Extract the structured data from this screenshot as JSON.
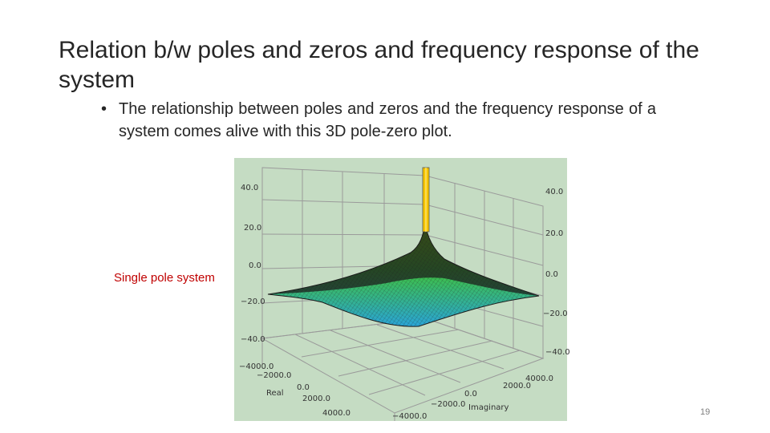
{
  "slide": {
    "title": "Relation b/w poles and zeros and frequency response of the system",
    "bullet_marker": "•",
    "bullet_text": "The relationship between poles and zeros and the frequency response of a system comes alive with this 3D pole-zero plot.",
    "caption": "Single pole system",
    "slide_number": "19"
  },
  "plot": {
    "left_z_labels": [
      "40.0",
      "20.0",
      "0.0",
      "−20.0",
      "−40.0"
    ],
    "right_z_labels": [
      "40.0",
      "20.0",
      "0.0",
      "−20.0",
      "−40.0"
    ],
    "real_labels": [
      "−4000.0",
      "−2000.0",
      "0.0",
      "2000.0",
      "4000.0"
    ],
    "imag_labels": [
      "−4000.0",
      "−2000.0",
      "0.0",
      "2000.0",
      "4000.0"
    ],
    "real_axis_label": "Real",
    "imag_axis_label": "Imaginary",
    "colors": {
      "background": "#c5dcc3",
      "grid": "#9a9a9a",
      "pole": "#f5c400",
      "surface_high": "#7cd000",
      "surface_low": "#2aa9d6",
      "mesh": "#1b1b1b"
    }
  }
}
